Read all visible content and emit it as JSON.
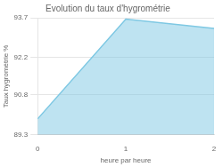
{
  "chart_data": {
    "type": "area",
    "title": "Evolution du taux d'hygrométrie",
    "xlabel": "heure par heure",
    "ylabel": "Taux hygrométrie %",
    "x": [
      0,
      1,
      2
    ],
    "values": [
      89.9,
      93.65,
      93.3
    ],
    "color": "#7ec8e3",
    "xlim": [
      0,
      2
    ],
    "xticks": [
      0,
      1,
      2
    ],
    "ylim": [
      89.3,
      93.7
    ],
    "yticks": [
      89.3,
      90.8,
      92.2,
      93.7
    ],
    "grid": true
  }
}
